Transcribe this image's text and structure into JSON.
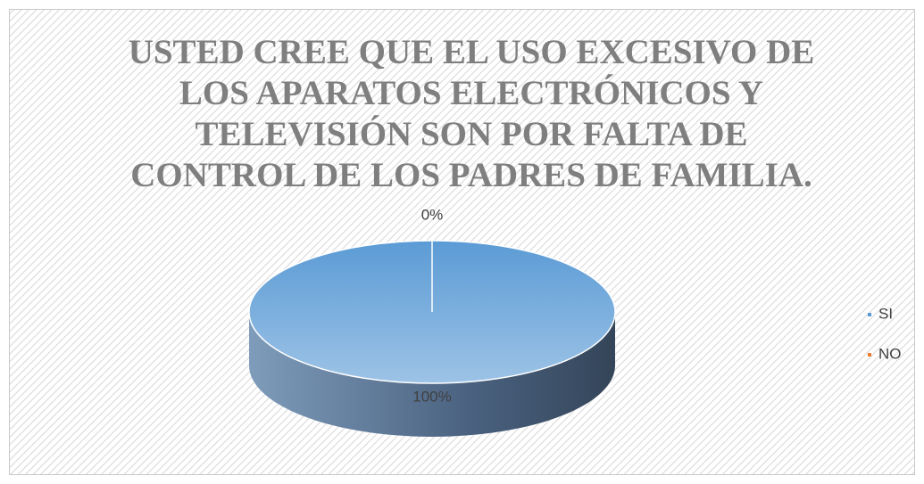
{
  "chart_data": {
    "type": "pie",
    "title": "USTED CREE QUE EL USO EXCESIVO DE LOS APARATOS ELECTRÓNICOS Y TELEVISIÓN SON POR FALTA DE CONTROL DE LOS PADRES DE FAMILIA.",
    "categories": [
      "SI",
      "NO"
    ],
    "values": [
      100,
      0
    ],
    "value_labels": [
      "100%",
      "0%"
    ],
    "colors": [
      "#5b9bd5",
      "#ed7d31"
    ],
    "legend": "right"
  }
}
